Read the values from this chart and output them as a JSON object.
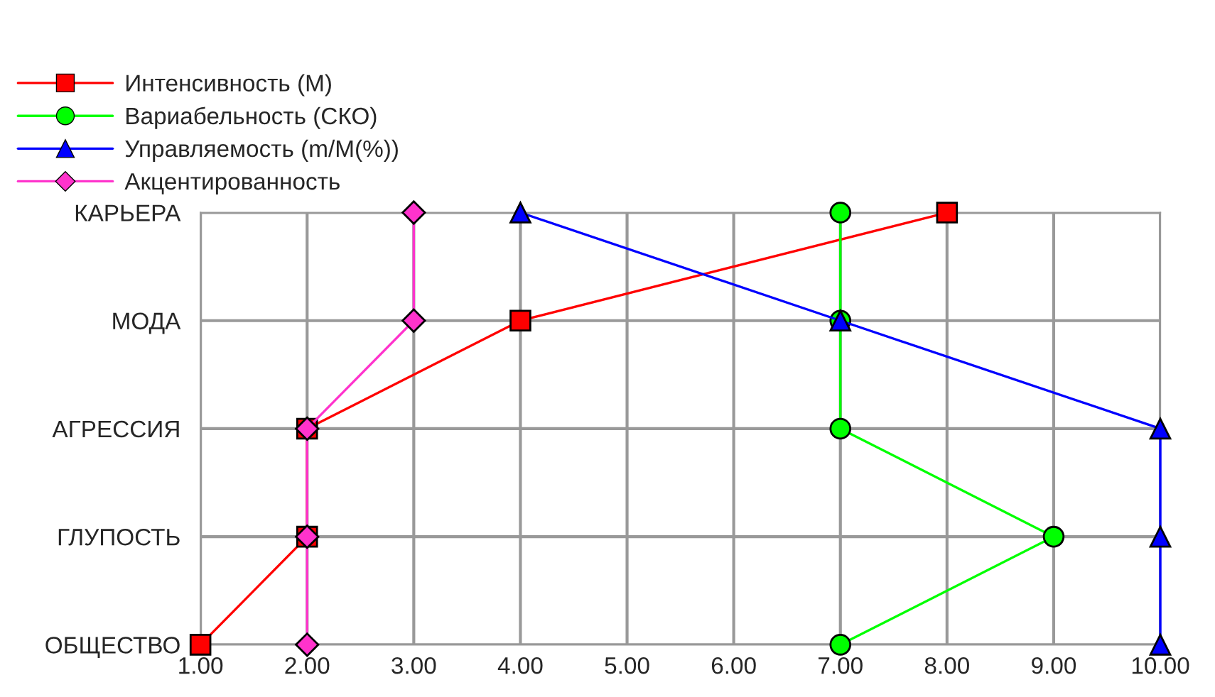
{
  "chart_data": {
    "type": "line",
    "orientation": "horizontal",
    "categories": [
      "КАРЬЕРА",
      "МОДА",
      "АГРЕССИЯ",
      "ГЛУПОСТЬ",
      "ОБЩЕСТВО"
    ],
    "series": [
      {
        "name": "Интенсивность (M)",
        "color": "#ff0000",
        "marker": "square",
        "values": [
          8,
          4,
          2,
          2,
          1
        ]
      },
      {
        "name": "Вариабельность (СКО)",
        "color": "#00ff00",
        "marker": "circle",
        "values": [
          7,
          7,
          7,
          9,
          7
        ]
      },
      {
        "name": "Управляемость (m/M(%))",
        "color": "#0000ff",
        "marker": "triangle",
        "values": [
          4,
          7,
          10,
          10,
          10
        ]
      },
      {
        "name": "Акцентированность",
        "color": "#ff33cc",
        "marker": "diamond",
        "values": [
          3,
          3,
          2,
          2,
          2
        ]
      }
    ],
    "xlim": [
      1,
      10
    ],
    "xticks": [
      {
        "value": 1,
        "label": "1.00"
      },
      {
        "value": 2,
        "label": "2.00"
      },
      {
        "value": 3,
        "label": "3.00"
      },
      {
        "value": 4,
        "label": "4.00"
      },
      {
        "value": 5,
        "label": "5.00"
      },
      {
        "value": 6,
        "label": "6.00"
      },
      {
        "value": 7,
        "label": "7.00"
      },
      {
        "value": 8,
        "label": "8.00"
      },
      {
        "value": 9,
        "label": "9.00"
      },
      {
        "value": 10,
        "label": "10.00"
      }
    ],
    "grid": true,
    "legend": "top left",
    "line_style": "solid"
  }
}
